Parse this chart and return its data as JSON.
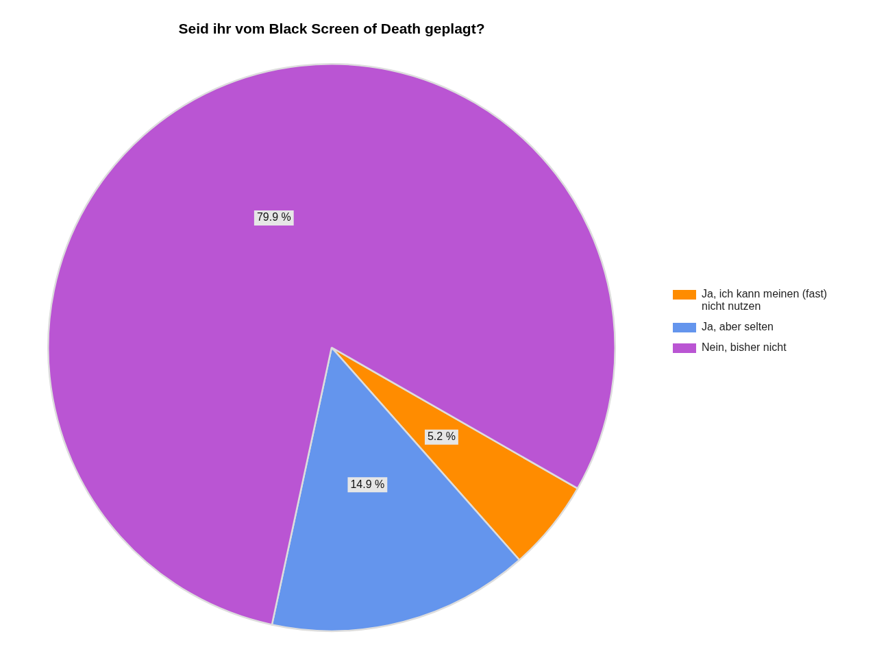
{
  "chart_data": {
    "type": "pie",
    "title": "Seid ihr vom Black Screen of Death geplagt?",
    "categories": [
      "Ja, ich kann meinen (fast) nicht nutzen",
      "Ja, aber selten",
      "Nein, bisher nicht"
    ],
    "values": [
      5.2,
      14.9,
      79.9
    ],
    "colors": [
      "#ff8c00",
      "#6495ed",
      "#ba55d3"
    ],
    "value_labels": [
      "5.2 %",
      "14.9 %",
      "79.9 %"
    ],
    "legend": "right"
  }
}
